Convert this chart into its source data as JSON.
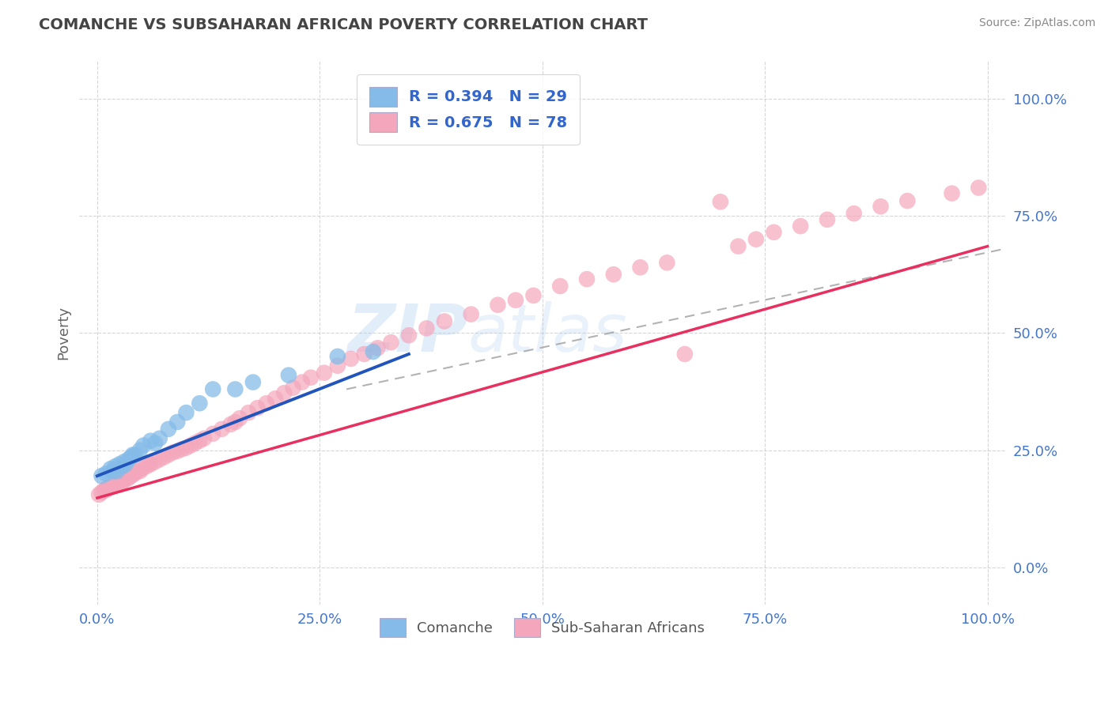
{
  "title": "COMANCHE VS SUBSAHARAN AFRICAN POVERTY CORRELATION CHART",
  "source": "Source: ZipAtlas.com",
  "ylabel": "Poverty",
  "legend_label1": "Comanche",
  "legend_label2": "Sub-Saharan Africans",
  "R1": 0.394,
  "N1": 29,
  "R2": 0.675,
  "N2": 78,
  "xlim": [
    -0.02,
    1.02
  ],
  "ylim": [
    -0.08,
    1.08
  ],
  "xticks": [
    0,
    0.25,
    0.5,
    0.75,
    1.0
  ],
  "yticks": [
    0,
    0.25,
    0.5,
    0.75,
    1.0
  ],
  "xticklabels": [
    "0.0%",
    "25.0%",
    "50.0%",
    "75.0%",
    "100.0%"
  ],
  "yticklabels": [
    "0.0%",
    "25.0%",
    "50.0%",
    "75.0%",
    "100.0%"
  ],
  "color_blue": "#85BBE8",
  "color_pink": "#F4A7BC",
  "line_blue": "#2255BB",
  "line_pink": "#E83060",
  "line_dashed_color": "#AAAAAA",
  "bg_color": "#FFFFFF",
  "watermark_text": "ZIPatlas",
  "watermark_color": "#DDEEFF",
  "tick_color": "#4477CC",
  "title_color": "#444444",
  "source_color": "#888888",
  "legend_text_color": "#3366CC",
  "bottom_legend_text_color": "#555555",
  "blue_x": [
    0.005,
    0.01,
    0.015,
    0.018,
    0.02,
    0.022,
    0.025,
    0.028,
    0.03,
    0.032,
    0.035,
    0.038,
    0.04,
    0.043,
    0.048,
    0.052,
    0.06,
    0.065,
    0.07,
    0.08,
    0.09,
    0.1,
    0.115,
    0.13,
    0.155,
    0.175,
    0.215,
    0.27,
    0.31
  ],
  "blue_y": [
    0.195,
    0.2,
    0.21,
    0.205,
    0.215,
    0.205,
    0.22,
    0.215,
    0.225,
    0.22,
    0.23,
    0.235,
    0.24,
    0.24,
    0.25,
    0.26,
    0.27,
    0.265,
    0.275,
    0.295,
    0.31,
    0.33,
    0.35,
    0.38,
    0.38,
    0.395,
    0.41,
    0.45,
    0.46
  ],
  "pink_x": [
    0.002,
    0.005,
    0.008,
    0.01,
    0.012,
    0.015,
    0.018,
    0.02,
    0.022,
    0.025,
    0.027,
    0.03,
    0.033,
    0.035,
    0.038,
    0.04,
    0.042,
    0.045,
    0.048,
    0.05,
    0.055,
    0.058,
    0.06,
    0.065,
    0.07,
    0.075,
    0.08,
    0.085,
    0.09,
    0.095,
    0.1,
    0.105,
    0.11,
    0.115,
    0.12,
    0.13,
    0.14,
    0.15,
    0.155,
    0.16,
    0.17,
    0.18,
    0.19,
    0.2,
    0.21,
    0.22,
    0.23,
    0.24,
    0.255,
    0.27,
    0.285,
    0.3,
    0.315,
    0.33,
    0.35,
    0.37,
    0.39,
    0.42,
    0.45,
    0.47,
    0.49,
    0.52,
    0.55,
    0.58,
    0.61,
    0.64,
    0.66,
    0.7,
    0.72,
    0.74,
    0.76,
    0.79,
    0.82,
    0.85,
    0.88,
    0.91,
    0.96,
    0.99
  ],
  "pink_y": [
    0.155,
    0.16,
    0.165,
    0.165,
    0.17,
    0.17,
    0.175,
    0.18,
    0.175,
    0.185,
    0.18,
    0.185,
    0.19,
    0.19,
    0.195,
    0.198,
    0.2,
    0.205,
    0.205,
    0.21,
    0.215,
    0.22,
    0.22,
    0.225,
    0.23,
    0.235,
    0.24,
    0.245,
    0.248,
    0.252,
    0.255,
    0.26,
    0.265,
    0.27,
    0.275,
    0.285,
    0.295,
    0.305,
    0.31,
    0.318,
    0.33,
    0.34,
    0.35,
    0.36,
    0.372,
    0.383,
    0.395,
    0.405,
    0.415,
    0.43,
    0.445,
    0.455,
    0.468,
    0.48,
    0.495,
    0.51,
    0.525,
    0.54,
    0.56,
    0.57,
    0.58,
    0.6,
    0.615,
    0.625,
    0.64,
    0.65,
    0.455,
    0.78,
    0.685,
    0.7,
    0.715,
    0.728,
    0.742,
    0.755,
    0.77,
    0.782,
    0.798,
    0.81
  ],
  "blue_line_x": [
    0.0,
    0.35
  ],
  "blue_line_y": [
    0.195,
    0.455
  ],
  "pink_line_x": [
    0.0,
    1.0
  ],
  "pink_line_y": [
    0.148,
    0.685
  ],
  "dash_line_x": [
    0.28,
    1.02
  ],
  "dash_line_y": [
    0.38,
    0.68
  ]
}
